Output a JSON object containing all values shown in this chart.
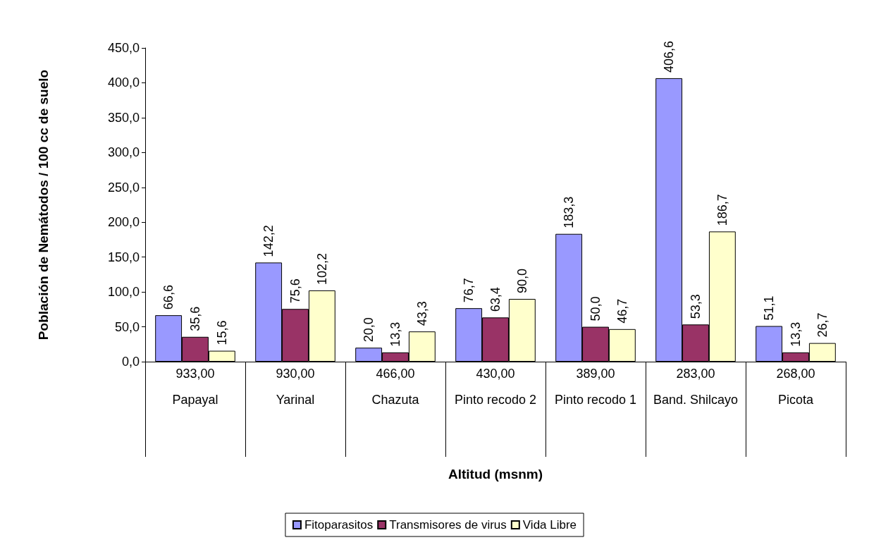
{
  "chart_data": {
    "type": "bar",
    "xlabel": "Altitud (msnm)",
    "ylabel": "Población de Nemátodos / 100 cc de suelo",
    "categories": [
      "933,00\nPapayal",
      "930,00\nYarinal",
      "466,00\nChazuta",
      "430,00\nPinto recodo 2",
      "389,00\nPinto recodo 1",
      "283,00\nBand. Shilcayo",
      "268,00\nPicota"
    ],
    "series": [
      {
        "name": "Fitoparasitos",
        "color": "#9999ff",
        "values": [
          66.6,
          142.2,
          20.0,
          76.7,
          183.3,
          406.6,
          51.1
        ],
        "value_labels": [
          "66,6",
          "142,2",
          "20,0",
          "76,7",
          "183,3",
          "406,6",
          "51,1"
        ]
      },
      {
        "name": "Transmisores de virus",
        "color": "#993366",
        "values": [
          35.6,
          75.6,
          13.3,
          63.4,
          50.0,
          53.3,
          13.3
        ],
        "value_labels": [
          "35,6",
          "75,6",
          "13,3",
          "63,4",
          "50,0",
          "53,3",
          "13,3"
        ]
      },
      {
        "name": "Vida Libre",
        "color": "#ffffcc",
        "values": [
          15.6,
          102.2,
          43.3,
          90.0,
          46.7,
          186.7,
          26.7
        ],
        "value_labels": [
          "15,6",
          "102,2",
          "43,3",
          "90,0",
          "46,7",
          "186,7",
          "26,7"
        ]
      }
    ],
    "ylim": [
      0,
      450
    ],
    "yticks": [
      {
        "value": 0,
        "label": "0,0"
      },
      {
        "value": 50,
        "label": "50,0"
      },
      {
        "value": 100,
        "label": "100,0"
      },
      {
        "value": 150,
        "label": "150,0"
      },
      {
        "value": 200,
        "label": "200,0"
      },
      {
        "value": 250,
        "label": "250,0"
      },
      {
        "value": 300,
        "label": "300,0"
      },
      {
        "value": 350,
        "label": "350,0"
      },
      {
        "value": 400,
        "label": "400,0"
      },
      {
        "value": 450,
        "label": "450,0"
      }
    ],
    "grid": false,
    "legend": "bottom"
  }
}
